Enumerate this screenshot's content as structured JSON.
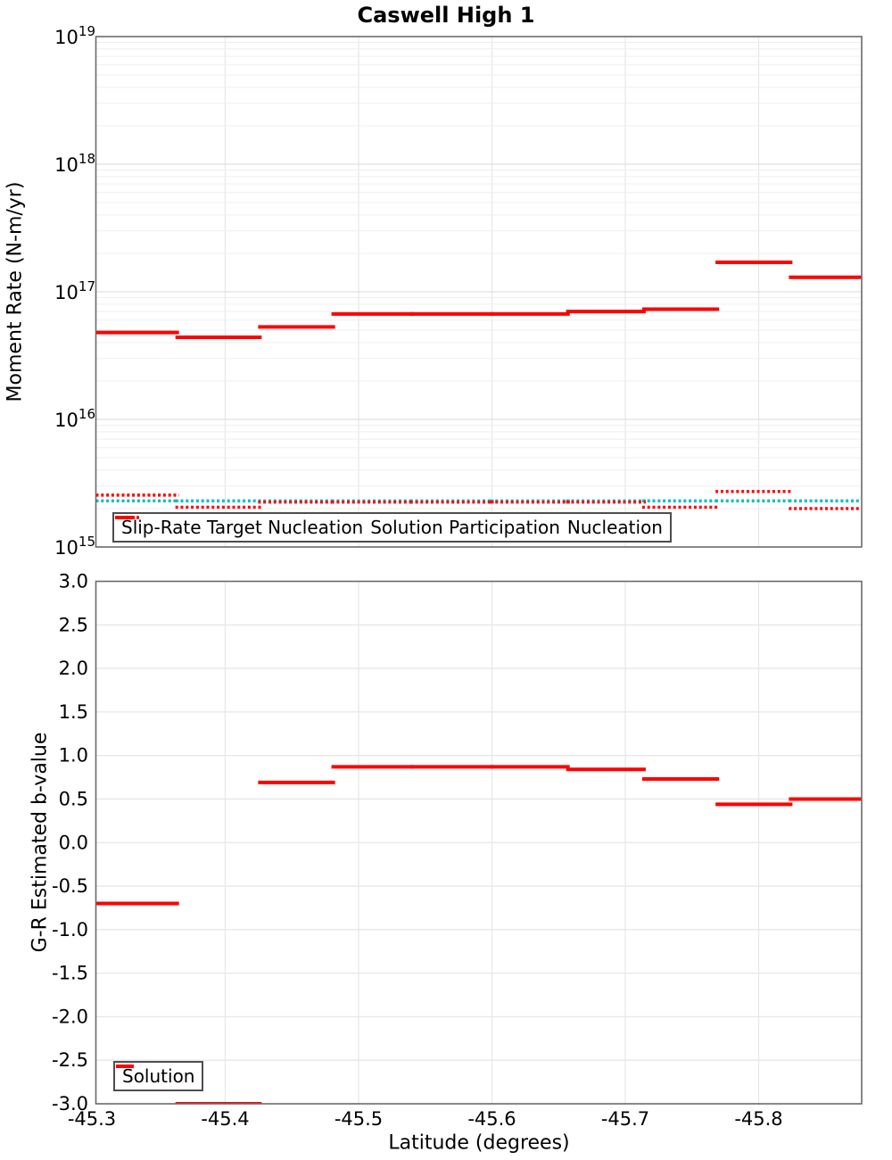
{
  "title": "Caswell High 1",
  "colors": {
    "red": "#ff0000",
    "cyan": "#00bfbf",
    "grid_minor": "#efefef",
    "grid_major": "#e0e0e0",
    "grid_vert": "#e7e7e7",
    "spine": "#6a6a6a",
    "legend_border": "#4d4d4d",
    "text": "#000000"
  },
  "chart_data": [
    {
      "id": "moment-rate-panel",
      "type": "line",
      "title": "Caswell High 1",
      "ylabel": "Moment Rate (N-m/yr)",
      "yscale": "log",
      "ylim": [
        1000000000000000.0,
        1e+19
      ],
      "ytick_labels": [
        "10^19",
        "10^18",
        "10^17",
        "10^16",
        "10^15"
      ],
      "grid": true,
      "legend_position": "inside-bottom-left",
      "bin_edges": [
        -45.303,
        -45.364,
        -45.426,
        -45.481,
        -45.54,
        -45.6,
        -45.657,
        -45.714,
        -45.769,
        -45.824,
        -45.877
      ],
      "series": [
        {
          "name": "Slip-Rate Target Nucleation",
          "style": "dotted",
          "color": "cyan",
          "values": [
            2300000000000000.0,
            2300000000000000.0,
            2300000000000000.0,
            2300000000000000.0,
            2300000000000000.0,
            2300000000000000.0,
            2300000000000000.0,
            2300000000000000.0,
            2300000000000000.0,
            2300000000000000.0
          ]
        },
        {
          "name": "Solution Participation",
          "style": "solid",
          "color": "red",
          "values": [
            4.8e+16,
            4.4e+16,
            5.3e+16,
            6.7e+16,
            6.7e+16,
            6.7e+16,
            7e+16,
            7.3e+16,
            1.7e+17,
            1.3e+17
          ]
        },
        {
          "name": "Nucleation",
          "style": "dotted",
          "color": "red",
          "values": [
            2550000000000000.0,
            2050000000000000.0,
            2250000000000000.0,
            2250000000000000.0,
            2250000000000000.0,
            2250000000000000.0,
            2250000000000000.0,
            2050000000000000.0,
            2720000000000000.0,
            2000000000000000.0
          ]
        }
      ]
    },
    {
      "id": "b-value-panel",
      "type": "line",
      "xlabel": "Latitude (degrees)",
      "ylabel": "G-R Estimated b-value",
      "ylim": [
        -3.0,
        3.0
      ],
      "ytick_labels": [
        "3.0",
        "2.5",
        "2.0",
        "1.5",
        "1.0",
        "0.5",
        "0.0",
        "-0.5",
        "-1.0",
        "-1.5",
        "-2.0",
        "-2.5",
        "-3.0"
      ],
      "xtick_labels": [
        "-45.3",
        "-45.4",
        "-45.5",
        "-45.6",
        "-45.7",
        "-45.8"
      ],
      "grid": true,
      "legend_position": "inside-bottom-left",
      "bin_edges": [
        -45.303,
        -45.364,
        -45.426,
        -45.481,
        -45.54,
        -45.6,
        -45.657,
        -45.714,
        -45.769,
        -45.824,
        -45.877
      ],
      "series": [
        {
          "name": "Solution",
          "style": "solid",
          "color": "red",
          "values": [
            -0.7,
            -3.0,
            0.69,
            0.87,
            0.87,
            0.87,
            0.84,
            0.73,
            0.44,
            0.5
          ]
        }
      ]
    }
  ]
}
